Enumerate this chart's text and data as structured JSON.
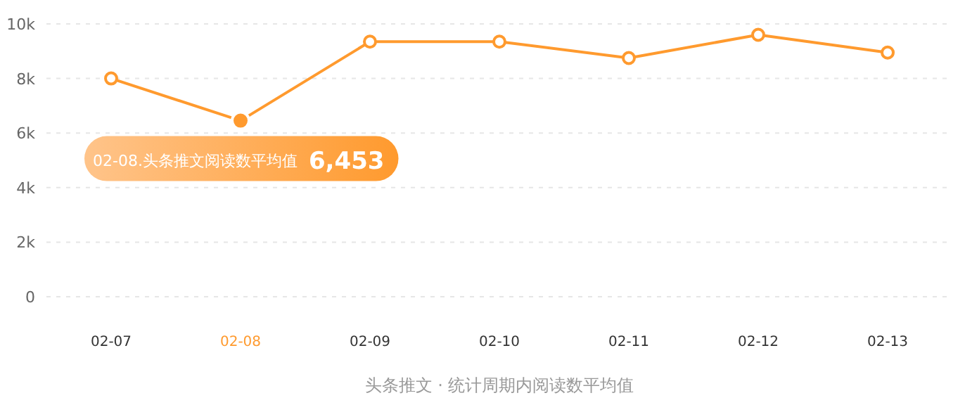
{
  "chart_data": {
    "type": "line",
    "xlabel": "头条推文 · 统计周期内阅读数平均值",
    "categories": [
      "02-07",
      "02-08",
      "02-09",
      "02-10",
      "02-11",
      "02-12",
      "02-13"
    ],
    "values": [
      8000,
      6453,
      9350,
      9350,
      8750,
      9600,
      8950
    ],
    "color": "#ff9a2e",
    "marker": "circle",
    "line_style": "solid",
    "grid": "y",
    "ylim": [
      0,
      10000
    ],
    "yticks": [
      {
        "value": 0,
        "label": "0"
      },
      {
        "value": 2000,
        "label": "2k"
      },
      {
        "value": 4000,
        "label": "4k"
      },
      {
        "value": 6000,
        "label": "6k"
      },
      {
        "value": 8000,
        "label": "8k"
      },
      {
        "value": 10000,
        "label": "10k"
      }
    ],
    "annotations": [
      {
        "text": "02-08.头条推文阅读数平均值",
        "x": "02-08",
        "y": 6453
      },
      "6,453"
    ]
  }
}
